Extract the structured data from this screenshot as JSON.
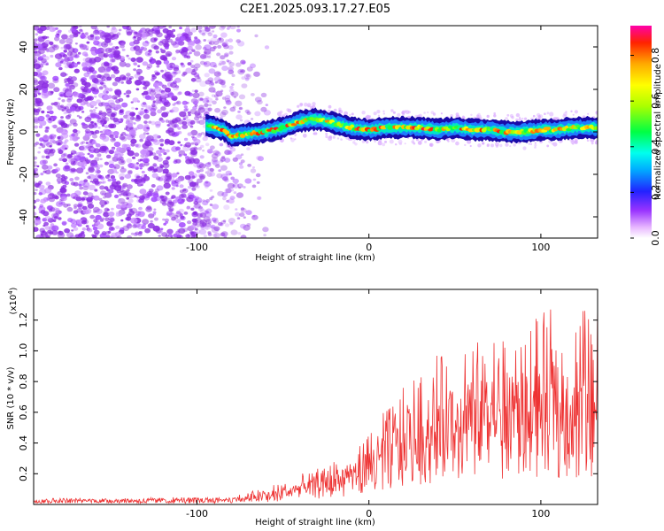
{
  "title": "C2E1.2025.093.17.27.E05",
  "chart_data": [
    {
      "type": "heatmap",
      "xlabel": "Height of straight line (km)",
      "ylabel": "Frequency (Hz)",
      "xlim": [
        -195,
        133
      ],
      "ylim": [
        -50,
        50
      ],
      "x_ticks": [
        -100,
        0,
        100
      ],
      "y_ticks": [
        -40,
        -20,
        0,
        20,
        40
      ],
      "colorbar": {
        "label": "Normalized spectral amplitude",
        "range": [
          0.0,
          0.93
        ],
        "ticks": [
          "0.0",
          "0.2",
          "0.4",
          "0.6",
          "0.8"
        ],
        "tick_values": [
          0.0,
          0.2,
          0.4,
          0.6,
          0.8
        ]
      },
      "signal_band": {
        "x_start": -95,
        "center_hz": [
          [
            -95,
            3
          ],
          [
            -90,
            2
          ],
          [
            -85,
            1
          ],
          [
            -80,
            -2
          ],
          [
            -70,
            -1
          ],
          [
            -60,
            0
          ],
          [
            -50,
            2
          ],
          [
            -40,
            5
          ],
          [
            -30,
            6
          ],
          [
            -20,
            4
          ],
          [
            -10,
            2
          ],
          [
            0,
            1
          ],
          [
            10,
            2
          ],
          [
            20,
            2
          ],
          [
            30,
            2
          ],
          [
            40,
            1
          ],
          [
            50,
            2
          ],
          [
            60,
            1
          ],
          [
            70,
            1
          ],
          [
            80,
            0
          ],
          [
            90,
            0
          ],
          [
            100,
            1
          ],
          [
            110,
            1
          ],
          [
            120,
            2
          ],
          [
            133,
            2
          ]
        ],
        "half_width_hz": 4
      },
      "noise_region_x": [
        -195,
        -55
      ]
    },
    {
      "type": "line",
      "xlabel": "Height of straight line (km)",
      "ylabel": "SNR (10 * v/v)",
      "y_scale_note": "(x10",
      "y_scale_exp": "4",
      "y_scale": 10000,
      "xlim": [
        -195,
        133
      ],
      "ylim": [
        0,
        14000
      ],
      "x_ticks": [
        -100,
        0,
        100
      ],
      "y_ticks": [
        2000,
        4000,
        6000,
        8000,
        10000,
        12000
      ],
      "y_tick_labels": [
        "0.2",
        "0.4",
        "0.6",
        "0.8",
        "1.0",
        "1.2"
      ],
      "series": [
        {
          "color": "#ee3333",
          "baseline": [
            [
              -195,
              250
            ],
            [
              -100,
              250
            ],
            [
              -70,
              350
            ],
            [
              -55,
              600
            ],
            [
              -40,
              1000
            ],
            [
              -20,
              1400
            ],
            [
              0,
              2400
            ],
            [
              20,
              3700
            ],
            [
              40,
              4800
            ],
            [
              60,
              5300
            ],
            [
              80,
              5500
            ],
            [
              100,
              5600
            ],
            [
              120,
              5800
            ],
            [
              133,
              6000
            ]
          ],
          "peaks": [
            [
              -195,
              400
            ],
            [
              -80,
              500
            ],
            [
              -50,
              1500
            ],
            [
              -30,
              2400
            ],
            [
              -10,
              3500
            ],
            [
              0,
              4500
            ],
            [
              20,
              8000
            ],
            [
              40,
              9800
            ],
            [
              60,
              10800
            ],
            [
              80,
              11000
            ],
            [
              100,
              12500
            ],
            [
              120,
              13200
            ],
            [
              133,
              13300
            ]
          ]
        }
      ]
    }
  ]
}
